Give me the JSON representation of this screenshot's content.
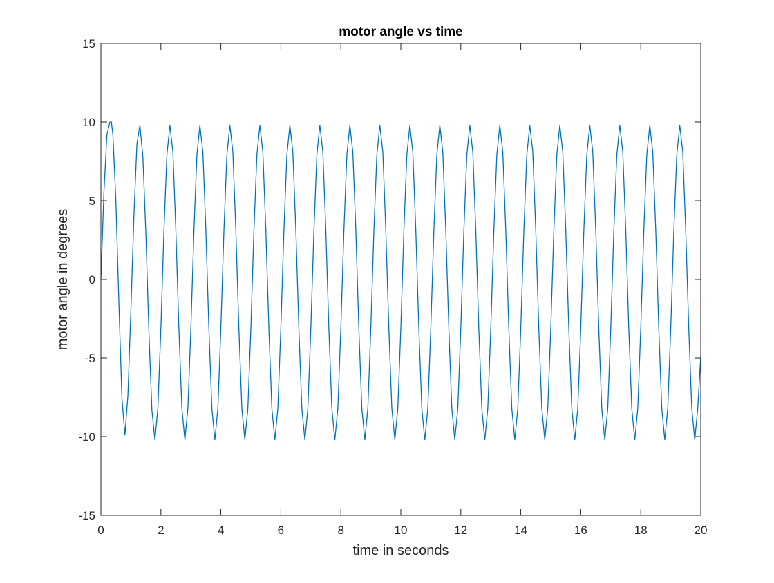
{
  "chart_data": {
    "type": "line",
    "title": "motor angle vs time",
    "xlabel": "time in seconds",
    "ylabel": "motor angle in degrees",
    "xlim": [
      0,
      20
    ],
    "ylim": [
      -15,
      15
    ],
    "xticks": [
      0,
      2,
      4,
      6,
      8,
      10,
      12,
      14,
      16,
      18,
      20
    ],
    "yticks": [
      -15,
      -10,
      -5,
      0,
      5,
      10,
      15
    ],
    "xtick_labels": [
      "0",
      "2",
      "4",
      "6",
      "8",
      "10",
      "12",
      "14",
      "16",
      "18",
      "20"
    ],
    "ytick_labels": [
      "-15",
      "-10",
      "-5",
      "0",
      "5",
      "10",
      "15"
    ],
    "grid": false,
    "legend": "none",
    "line_color": "#0072BD",
    "series": [
      {
        "x": [
          0,
          0.1,
          0.2,
          0.3,
          0.35,
          0.4,
          0.5,
          0.6,
          0.7,
          0.8,
          0.9,
          1.0,
          1.1,
          1.2,
          1.3,
          1.4,
          1.5,
          1.6,
          1.7,
          1.8,
          1.9,
          2.0,
          2.1,
          2.2,
          2.3,
          2.4,
          2.5,
          2.6,
          2.7,
          2.8,
          2.9,
          3.0,
          3.1,
          3.2,
          3.3,
          3.4,
          3.5,
          3.6,
          3.7,
          3.8,
          3.9,
          4.0,
          4.1,
          4.2,
          4.3,
          4.4,
          4.5,
          4.6,
          4.7,
          4.8,
          4.9,
          5.0,
          5.1,
          5.2,
          5.3,
          5.4,
          5.5,
          5.6,
          5.7,
          5.8,
          5.9,
          6.0,
          6.1,
          6.2,
          6.3,
          6.4,
          6.5,
          6.6,
          6.7,
          6.8,
          6.9,
          7.0,
          7.1,
          7.2,
          7.3,
          7.4,
          7.5,
          7.6,
          7.7,
          7.8,
          7.9,
          8.0,
          8.1,
          8.2,
          8.3,
          8.4,
          8.5,
          8.6,
          8.7,
          8.8,
          8.9,
          9.0,
          9.1,
          9.2,
          9.3,
          9.4,
          9.5,
          9.6,
          9.7,
          9.8,
          9.9,
          10.0,
          10.1,
          10.2,
          10.3,
          10.4,
          10.5,
          10.6,
          10.7,
          10.8,
          10.9,
          11.0,
          11.1,
          11.2,
          11.3,
          11.4,
          11.5,
          11.6,
          11.7,
          11.8,
          11.9,
          12.0,
          12.1,
          12.2,
          12.3,
          12.4,
          12.5,
          12.6,
          12.7,
          12.8,
          12.9,
          13.0,
          13.1,
          13.2,
          13.3,
          13.4,
          13.5,
          13.6,
          13.7,
          13.8,
          13.9,
          14.0,
          14.1,
          14.2,
          14.3,
          14.4,
          14.5,
          14.6,
          14.7,
          14.8,
          14.9,
          15.0,
          15.1,
          15.2,
          15.3,
          15.4,
          15.5,
          15.6,
          15.7,
          15.8,
          15.9,
          16.0,
          16.1,
          16.2,
          16.3,
          16.4,
          16.5,
          16.6,
          16.7,
          16.8,
          16.9,
          17.0,
          17.1,
          17.2,
          17.3,
          17.4,
          17.5,
          17.6,
          17.7,
          17.8,
          17.9,
          18.0,
          18.1,
          18.2,
          18.3,
          18.4,
          18.5,
          18.6,
          18.7,
          18.8,
          18.9,
          19.0,
          19.1,
          19.2,
          19.3,
          19.4,
          19.5,
          19.6,
          19.7,
          19.8,
          19.9,
          20.0
        ],
        "y": [
          0,
          5.5,
          9.2,
          10.0,
          10.0,
          9.2,
          5.0,
          -1.5,
          -7.5,
          -9.9,
          -7.4,
          -2.0,
          4.0,
          8.6,
          9.8,
          7.8,
          2.9,
          -3.3,
          -8.3,
          -10.2,
          -8.2,
          -3.1,
          3.0,
          7.9,
          9.8,
          8.1,
          3.1,
          -3.1,
          -8.2,
          -10.2,
          -8.2,
          -3.1,
          3.0,
          7.9,
          9.8,
          8.1,
          3.1,
          -3.1,
          -8.2,
          -10.2,
          -8.2,
          -3.1,
          3.0,
          7.9,
          9.8,
          8.1,
          3.1,
          -3.1,
          -8.2,
          -10.2,
          -8.2,
          -3.1,
          3.0,
          7.9,
          9.8,
          8.1,
          3.1,
          -3.1,
          -8.2,
          -10.2,
          -8.2,
          -3.1,
          3.0,
          7.9,
          9.8,
          8.1,
          3.1,
          -3.1,
          -8.2,
          -10.2,
          -8.2,
          -3.1,
          3.0,
          7.9,
          9.8,
          8.1,
          3.1,
          -3.1,
          -8.2,
          -10.2,
          -8.2,
          -3.1,
          3.0,
          7.9,
          9.8,
          8.1,
          3.1,
          -3.1,
          -8.2,
          -10.2,
          -8.2,
          -3.1,
          3.0,
          7.9,
          9.8,
          8.1,
          3.1,
          -3.1,
          -8.2,
          -10.2,
          -8.2,
          -3.1,
          3.0,
          7.9,
          9.8,
          8.1,
          3.1,
          -3.1,
          -8.2,
          -10.2,
          -8.2,
          -3.1,
          3.0,
          7.9,
          9.8,
          8.1,
          3.1,
          -3.1,
          -8.2,
          -10.2,
          -8.2,
          -3.1,
          3.0,
          7.9,
          9.8,
          8.1,
          3.1,
          -3.1,
          -8.2,
          -10.2,
          -8.2,
          -3.1,
          3.0,
          7.9,
          9.8,
          8.1,
          3.1,
          -3.1,
          -8.2,
          -10.2,
          -8.2,
          -3.1,
          3.0,
          7.9,
          9.8,
          8.1,
          3.1,
          -3.1,
          -8.2,
          -10.2,
          -8.2,
          -3.1,
          3.0,
          7.9,
          9.8,
          8.1,
          3.1,
          -3.1,
          -8.2,
          -10.2,
          -8.2,
          -3.1,
          3.0,
          7.9,
          9.8,
          8.1,
          3.1,
          -3.1,
          -8.2,
          -10.2,
          -8.2,
          -3.1,
          3.0,
          7.9,
          9.8,
          8.1,
          3.1,
          -3.1,
          -8.2,
          -10.2,
          -8.2,
          -3.1,
          3.0,
          7.9,
          9.8,
          8.1,
          3.1,
          -3.1,
          -8.2,
          -10.2,
          -8.2,
          -3.1,
          3.0,
          7.9,
          9.8,
          8.1,
          3.1,
          -3.1,
          -8.2,
          -10.2,
          -8.2,
          -4.9
        ]
      }
    ]
  }
}
